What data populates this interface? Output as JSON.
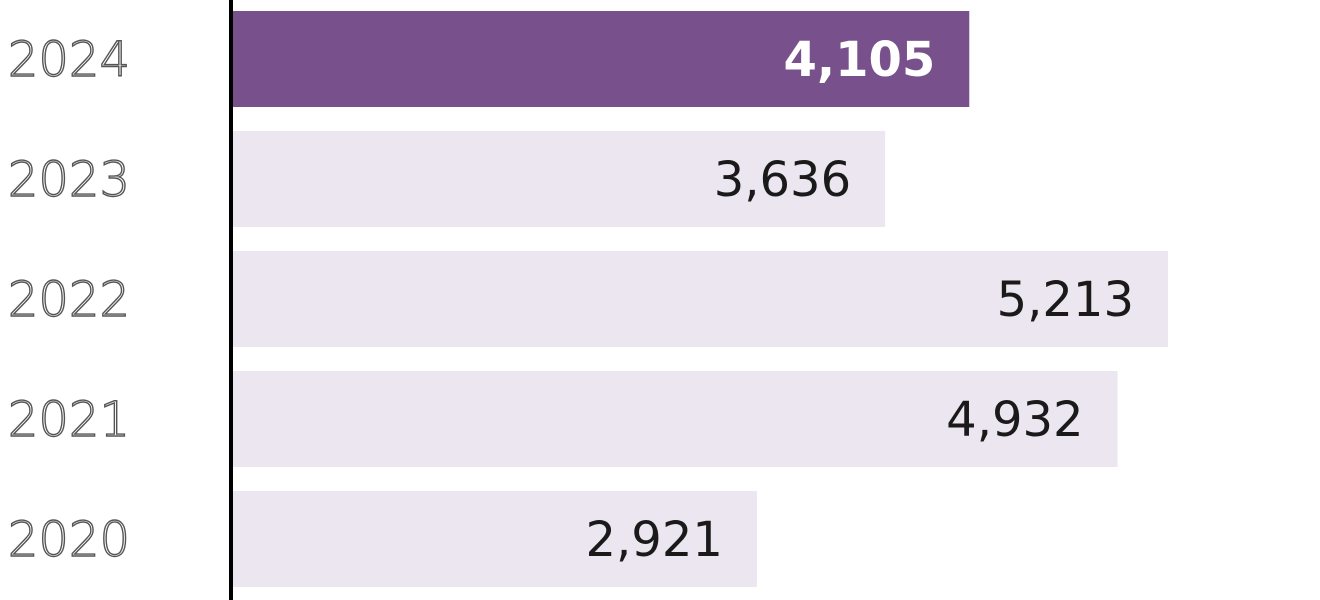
{
  "chart_data": {
    "type": "bar",
    "orientation": "horizontal",
    "categories": [
      "2024",
      "2023",
      "2022",
      "2021",
      "2020"
    ],
    "values": [
      4105,
      3636,
      5213,
      4932,
      2921
    ],
    "value_labels": [
      "4,105",
      "3,636",
      "5,213",
      "4,932",
      "2,921"
    ],
    "highlight_index": 0,
    "title": "",
    "xlabel": "",
    "ylabel": "",
    "grid": false,
    "colors": {
      "highlight": "#77508c",
      "default": "#ebe6f0",
      "axis": "#000000"
    }
  }
}
